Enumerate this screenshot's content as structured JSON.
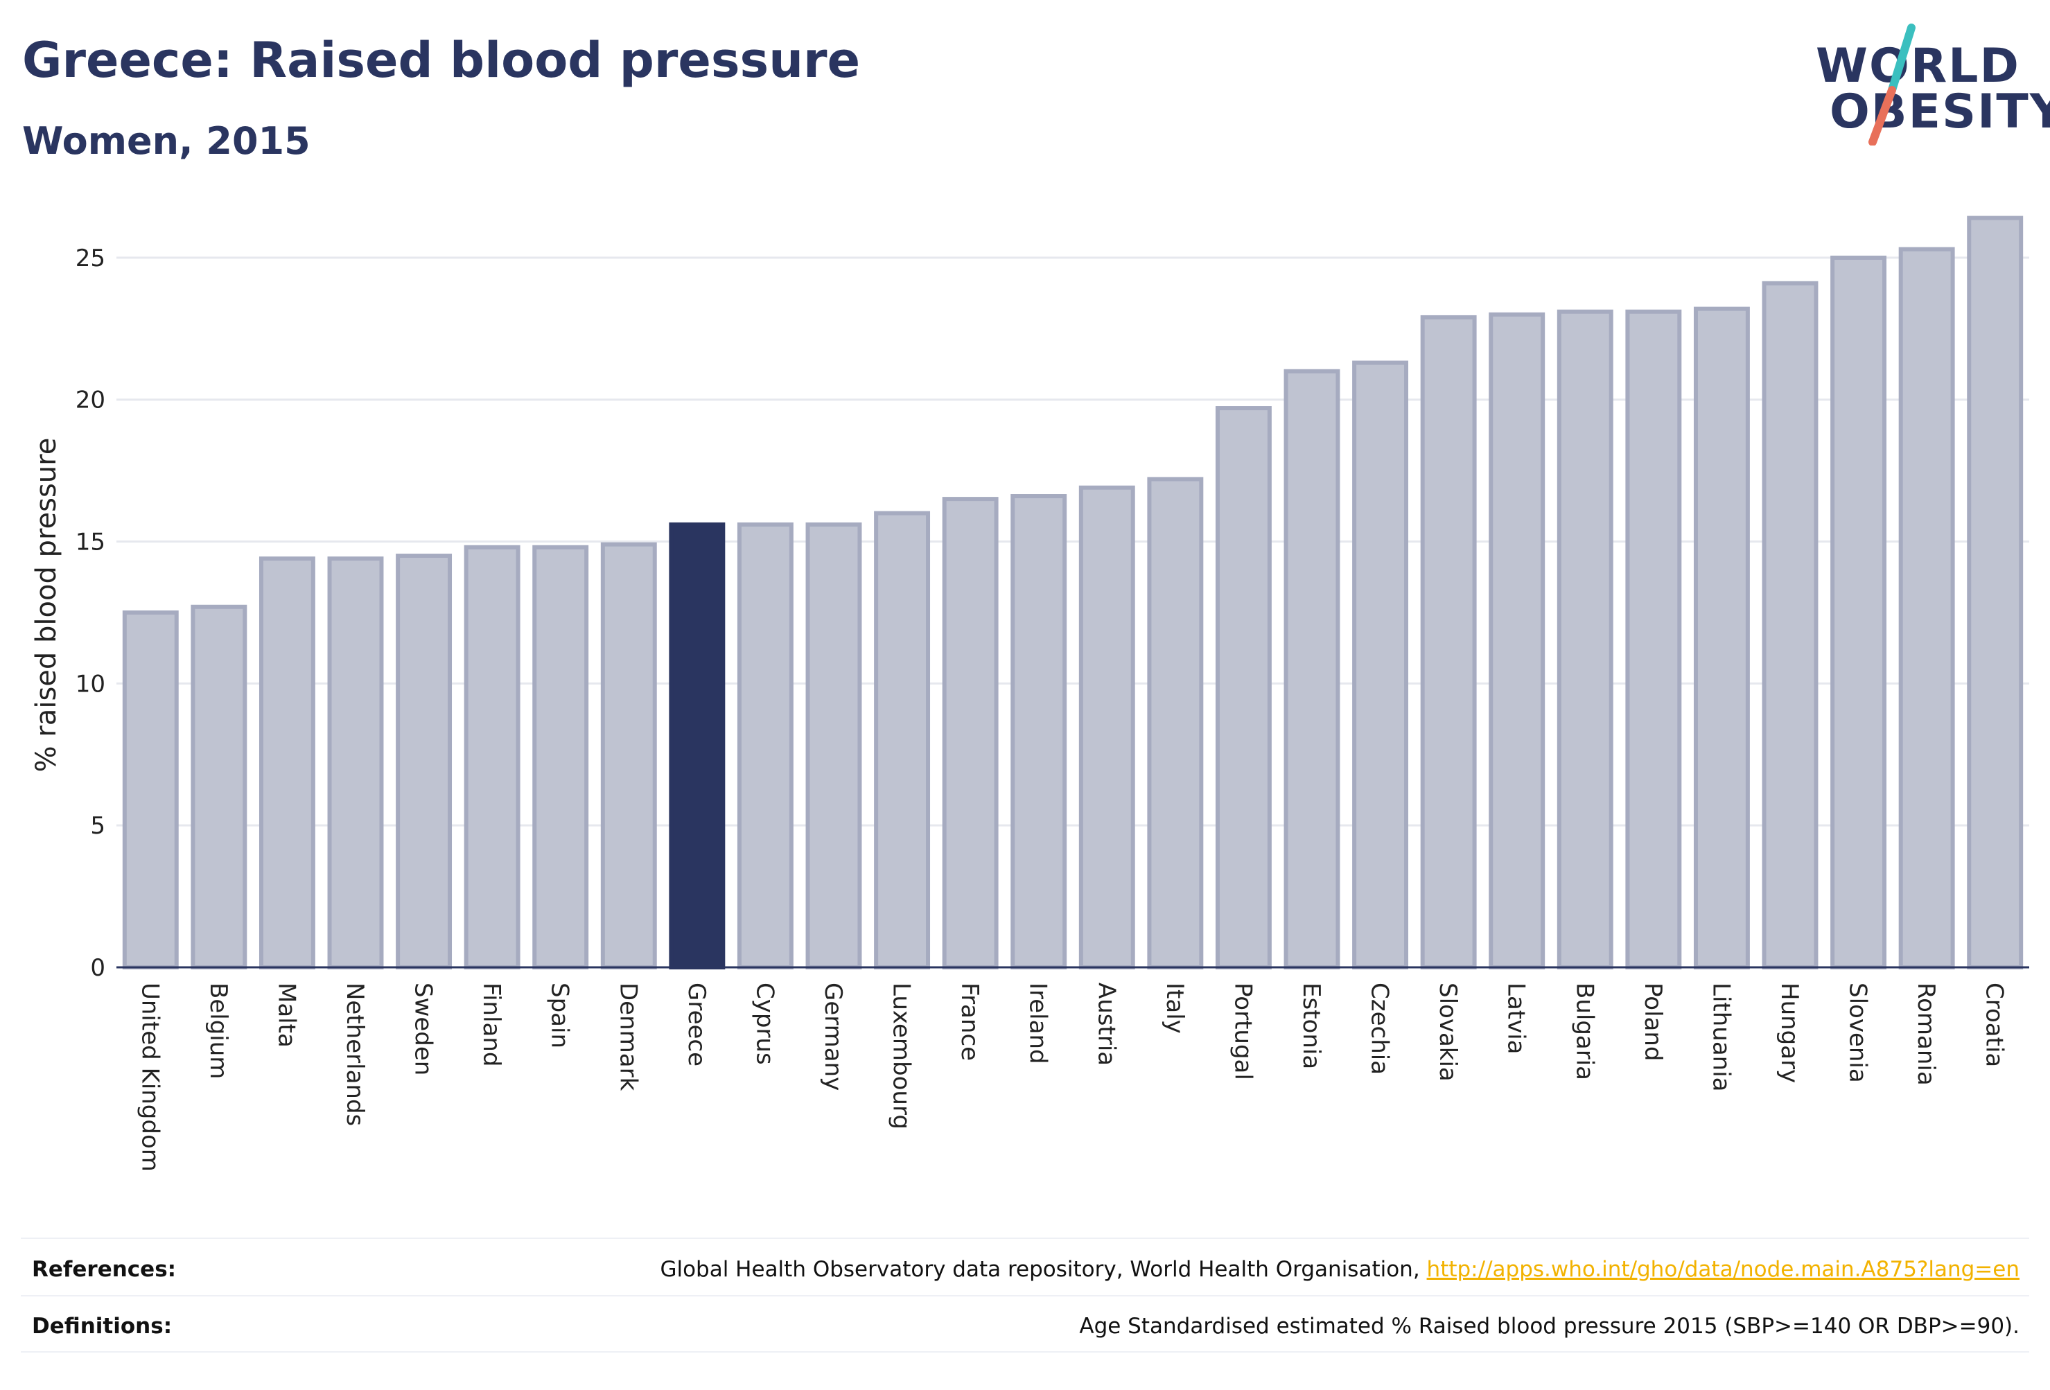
{
  "header": {
    "title": "Greece: Raised blood pressure",
    "subtitle": "Women, 2015"
  },
  "logo": {
    "line1": "WORLD",
    "line2": "OBESITY",
    "accent_colors": [
      "#3bbfbf",
      "#e8705a"
    ]
  },
  "colors": {
    "highlight": "#2a3560",
    "bar_fill": "#bfc3d1",
    "bar_stroke": "#a6abc0",
    "gridline": "#e6e8ee",
    "axis": "#2a3560"
  },
  "chart_data": {
    "type": "bar",
    "title": "Greece: Raised blood pressure",
    "subtitle": "Women, 2015",
    "xlabel": "",
    "ylabel": "% raised blood pressure",
    "ylim": [
      0,
      27
    ],
    "yticks": [
      0,
      5,
      10,
      15,
      20,
      25
    ],
    "grid": true,
    "highlight": "Greece",
    "categories": [
      "United Kingdom",
      "Belgium",
      "Malta",
      "Netherlands",
      "Sweden",
      "Finland",
      "Spain",
      "Denmark",
      "Greece",
      "Cyprus",
      "Germany",
      "Luxembourg",
      "France",
      "Ireland",
      "Austria",
      "Italy",
      "Portugal",
      "Estonia",
      "Czechia",
      "Slovakia",
      "Latvia",
      "Bulgaria",
      "Poland",
      "Lithuania",
      "Hungary",
      "Slovenia",
      "Romania",
      "Croatia"
    ],
    "values": [
      12.5,
      12.7,
      14.4,
      14.4,
      14.5,
      14.8,
      14.8,
      14.9,
      15.6,
      15.6,
      15.6,
      16.0,
      16.5,
      16.6,
      16.9,
      17.2,
      19.7,
      21.0,
      21.3,
      22.9,
      23.0,
      23.1,
      23.1,
      23.2,
      24.1,
      25.0,
      25.3,
      26.4
    ]
  },
  "footer": {
    "references_label": "References:",
    "references_text": "Global Health Observatory data repository, World Health Organisation, ",
    "references_link": "http://apps.who.int/gho/data/node.main.A875?lang=en",
    "definitions_label": "Definitions:",
    "definitions_text": "Age Standardised estimated % Raised blood pressure 2015 (SBP>=140 OR DBP>=90)."
  }
}
